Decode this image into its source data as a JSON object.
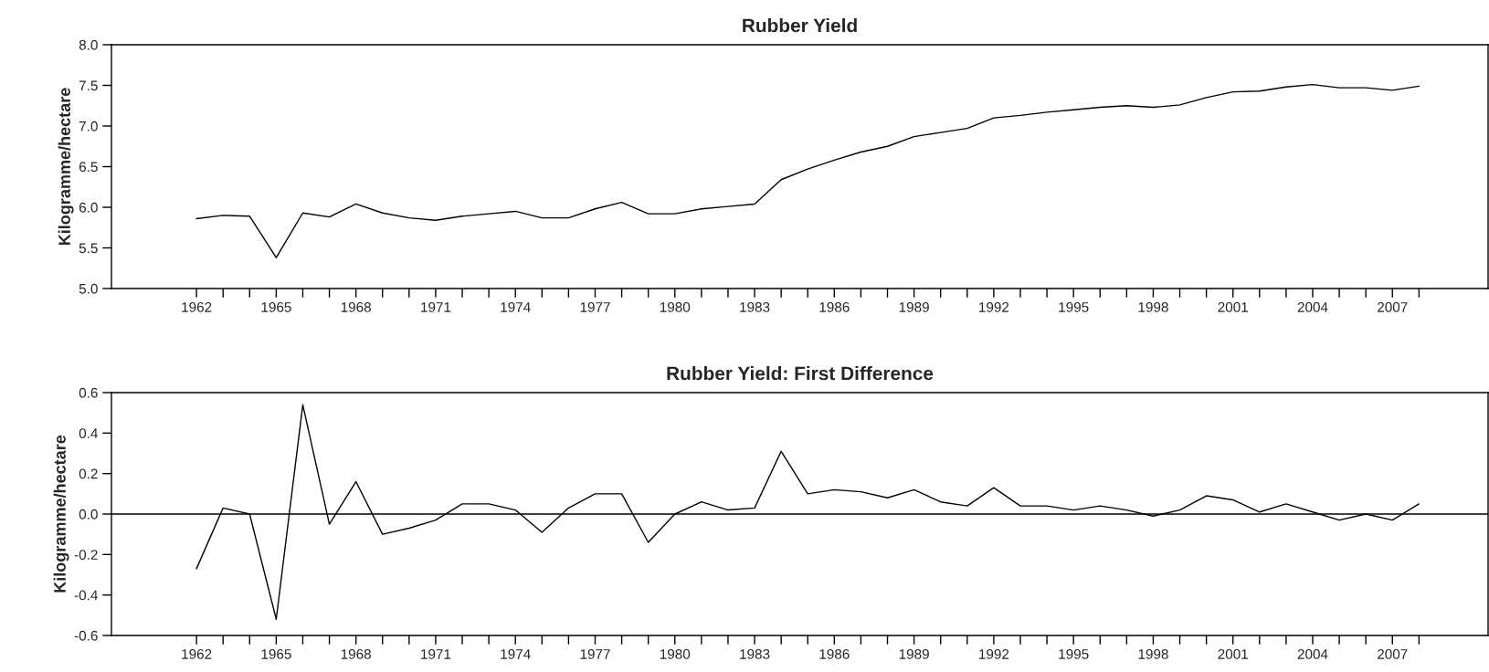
{
  "chart_data": [
    {
      "type": "line",
      "title": "Rubber Yield",
      "ylabel": "Kilogramme/hectare",
      "x": [
        1962,
        1963,
        1964,
        1965,
        1966,
        1967,
        1968,
        1969,
        1970,
        1971,
        1972,
        1973,
        1974,
        1975,
        1976,
        1977,
        1978,
        1979,
        1980,
        1981,
        1982,
        1983,
        1984,
        1985,
        1986,
        1987,
        1988,
        1989,
        1990,
        1991,
        1992,
        1993,
        1994,
        1995,
        1996,
        1997,
        1998,
        1999,
        2000,
        2001,
        2002,
        2003,
        2004,
        2005,
        2006,
        2007,
        2008
      ],
      "series": [
        {
          "color": "#000000",
          "values": [
            5.86,
            5.9,
            5.89,
            5.38,
            5.93,
            5.88,
            6.04,
            5.93,
            5.87,
            5.84,
            5.89,
            5.92,
            5.95,
            5.87,
            5.87,
            5.98,
            6.06,
            5.92,
            5.92,
            5.98,
            6.01,
            6.04,
            6.34,
            6.47,
            6.58,
            6.68,
            6.75,
            6.87,
            6.92,
            6.97,
            7.1,
            7.13,
            7.17,
            7.2,
            7.23,
            7.25,
            7.23,
            7.26,
            7.35,
            7.42,
            7.43,
            7.48,
            7.51,
            7.47,
            7.47,
            7.44,
            7.49
          ]
        }
      ],
      "xlim": [
        1958.8,
        2010.6
      ],
      "xticks": [
        {
          "value": 1962,
          "label": "1962"
        },
        {
          "value": 1963,
          "label": null
        },
        {
          "value": 1964,
          "label": null
        },
        {
          "value": 1965,
          "label": "1965"
        },
        {
          "value": 1966,
          "label": null
        },
        {
          "value": 1967,
          "label": null
        },
        {
          "value": 1968,
          "label": "1968"
        },
        {
          "value": 1969,
          "label": null
        },
        {
          "value": 1970,
          "label": null
        },
        {
          "value": 1971,
          "label": "1971"
        },
        {
          "value": 1972,
          "label": null
        },
        {
          "value": 1973,
          "label": null
        },
        {
          "value": 1974,
          "label": "1974"
        },
        {
          "value": 1975,
          "label": null
        },
        {
          "value": 1976,
          "label": null
        },
        {
          "value": 1977,
          "label": "1977"
        },
        {
          "value": 1978,
          "label": null
        },
        {
          "value": 1979,
          "label": null
        },
        {
          "value": 1980,
          "label": "1980"
        },
        {
          "value": 1981,
          "label": null
        },
        {
          "value": 1982,
          "label": null
        },
        {
          "value": 1983,
          "label": "1983"
        },
        {
          "value": 1984,
          "label": null
        },
        {
          "value": 1985,
          "label": null
        },
        {
          "value": 1986,
          "label": "1986"
        },
        {
          "value": 1987,
          "label": null
        },
        {
          "value": 1988,
          "label": null
        },
        {
          "value": 1989,
          "label": "1989"
        },
        {
          "value": 1990,
          "label": null
        },
        {
          "value": 1991,
          "label": null
        },
        {
          "value": 1992,
          "label": "1992"
        },
        {
          "value": 1993,
          "label": null
        },
        {
          "value": 1994,
          "label": null
        },
        {
          "value": 1995,
          "label": "1995"
        },
        {
          "value": 1996,
          "label": null
        },
        {
          "value": 1997,
          "label": null
        },
        {
          "value": 1998,
          "label": "1998"
        },
        {
          "value": 1999,
          "label": null
        },
        {
          "value": 2000,
          "label": null
        },
        {
          "value": 2001,
          "label": "2001"
        },
        {
          "value": 2002,
          "label": null
        },
        {
          "value": 2003,
          "label": null
        },
        {
          "value": 2004,
          "label": "2004"
        },
        {
          "value": 2005,
          "label": null
        },
        {
          "value": 2006,
          "label": null
        },
        {
          "value": 2007,
          "label": "2007"
        },
        {
          "value": 2008,
          "label": null
        }
      ],
      "ylim": [
        5.0,
        8.0
      ],
      "yticks": [
        {
          "value": 5.0,
          "label": "5.0"
        },
        {
          "value": 5.5,
          "label": "5.5"
        },
        {
          "value": 6.0,
          "label": "6.0"
        },
        {
          "value": 6.5,
          "label": "6.5"
        },
        {
          "value": 7.0,
          "label": "7.0"
        },
        {
          "value": 7.5,
          "label": "7.5"
        },
        {
          "value": 8.0,
          "label": "8.0"
        }
      ],
      "grid": false
    },
    {
      "type": "line",
      "title": "Rubber Yield: First Difference",
      "ylabel": "Kilogramme/hectare",
      "x": [
        1962,
        1963,
        1964,
        1965,
        1966,
        1967,
        1968,
        1969,
        1970,
        1971,
        1972,
        1973,
        1974,
        1975,
        1976,
        1977,
        1978,
        1979,
        1980,
        1981,
        1982,
        1983,
        1984,
        1985,
        1986,
        1987,
        1988,
        1989,
        1990,
        1991,
        1992,
        1993,
        1994,
        1995,
        1996,
        1997,
        1998,
        1999,
        2000,
        2001,
        2002,
        2003,
        2004,
        2005,
        2006,
        2007,
        2008
      ],
      "series": [
        {
          "color": "#000000",
          "values": [
            -0.27,
            0.03,
            0.0,
            -0.52,
            0.54,
            -0.05,
            0.16,
            -0.1,
            -0.07,
            -0.03,
            0.05,
            0.05,
            0.02,
            -0.09,
            0.03,
            0.1,
            0.1,
            -0.14,
            0.0,
            0.06,
            0.02,
            0.03,
            0.31,
            0.1,
            0.12,
            0.11,
            0.08,
            0.12,
            0.06,
            0.04,
            0.13,
            0.04,
            0.04,
            0.02,
            0.04,
            0.02,
            -0.01,
            0.02,
            0.09,
            0.07,
            0.01,
            0.05,
            0.01,
            -0.03,
            0.0,
            -0.03,
            0.05
          ]
        }
      ],
      "xlim": [
        1958.8,
        2010.6
      ],
      "xticks": [
        {
          "value": 1962,
          "label": "1962"
        },
        {
          "value": 1963,
          "label": null
        },
        {
          "value": 1964,
          "label": null
        },
        {
          "value": 1965,
          "label": "1965"
        },
        {
          "value": 1966,
          "label": null
        },
        {
          "value": 1967,
          "label": null
        },
        {
          "value": 1968,
          "label": "1968"
        },
        {
          "value": 1969,
          "label": null
        },
        {
          "value": 1970,
          "label": null
        },
        {
          "value": 1971,
          "label": "1971"
        },
        {
          "value": 1972,
          "label": null
        },
        {
          "value": 1973,
          "label": null
        },
        {
          "value": 1974,
          "label": "1974"
        },
        {
          "value": 1975,
          "label": null
        },
        {
          "value": 1976,
          "label": null
        },
        {
          "value": 1977,
          "label": "1977"
        },
        {
          "value": 1978,
          "label": null
        },
        {
          "value": 1979,
          "label": null
        },
        {
          "value": 1980,
          "label": "1980"
        },
        {
          "value": 1981,
          "label": null
        },
        {
          "value": 1982,
          "label": null
        },
        {
          "value": 1983,
          "label": "1983"
        },
        {
          "value": 1984,
          "label": null
        },
        {
          "value": 1985,
          "label": null
        },
        {
          "value": 1986,
          "label": "1986"
        },
        {
          "value": 1987,
          "label": null
        },
        {
          "value": 1988,
          "label": null
        },
        {
          "value": 1989,
          "label": "1989"
        },
        {
          "value": 1990,
          "label": null
        },
        {
          "value": 1991,
          "label": null
        },
        {
          "value": 1992,
          "label": "1992"
        },
        {
          "value": 1993,
          "label": null
        },
        {
          "value": 1994,
          "label": null
        },
        {
          "value": 1995,
          "label": "1995"
        },
        {
          "value": 1996,
          "label": null
        },
        {
          "value": 1997,
          "label": null
        },
        {
          "value": 1998,
          "label": "1998"
        },
        {
          "value": 1999,
          "label": null
        },
        {
          "value": 2000,
          "label": null
        },
        {
          "value": 2001,
          "label": "2001"
        },
        {
          "value": 2002,
          "label": null
        },
        {
          "value": 2003,
          "label": null
        },
        {
          "value": 2004,
          "label": "2004"
        },
        {
          "value": 2005,
          "label": null
        },
        {
          "value": 2006,
          "label": null
        },
        {
          "value": 2007,
          "label": "2007"
        },
        {
          "value": 2008,
          "label": null
        }
      ],
      "ylim": [
        -0.6,
        0.6
      ],
      "yticks": [
        {
          "value": -0.6,
          "label": "-0.6"
        },
        {
          "value": -0.4,
          "label": "-0.4"
        },
        {
          "value": -0.2,
          "label": "-0.2"
        },
        {
          "value": 0.0,
          "label": "0.0"
        },
        {
          "value": 0.2,
          "label": "0.2"
        },
        {
          "value": 0.4,
          "label": "0.4"
        },
        {
          "value": 0.6,
          "label": "0.6"
        }
      ],
      "ref_lines": [
        {
          "axis": "y",
          "value": 0.0,
          "color": "#000000"
        }
      ],
      "grid": false
    }
  ]
}
